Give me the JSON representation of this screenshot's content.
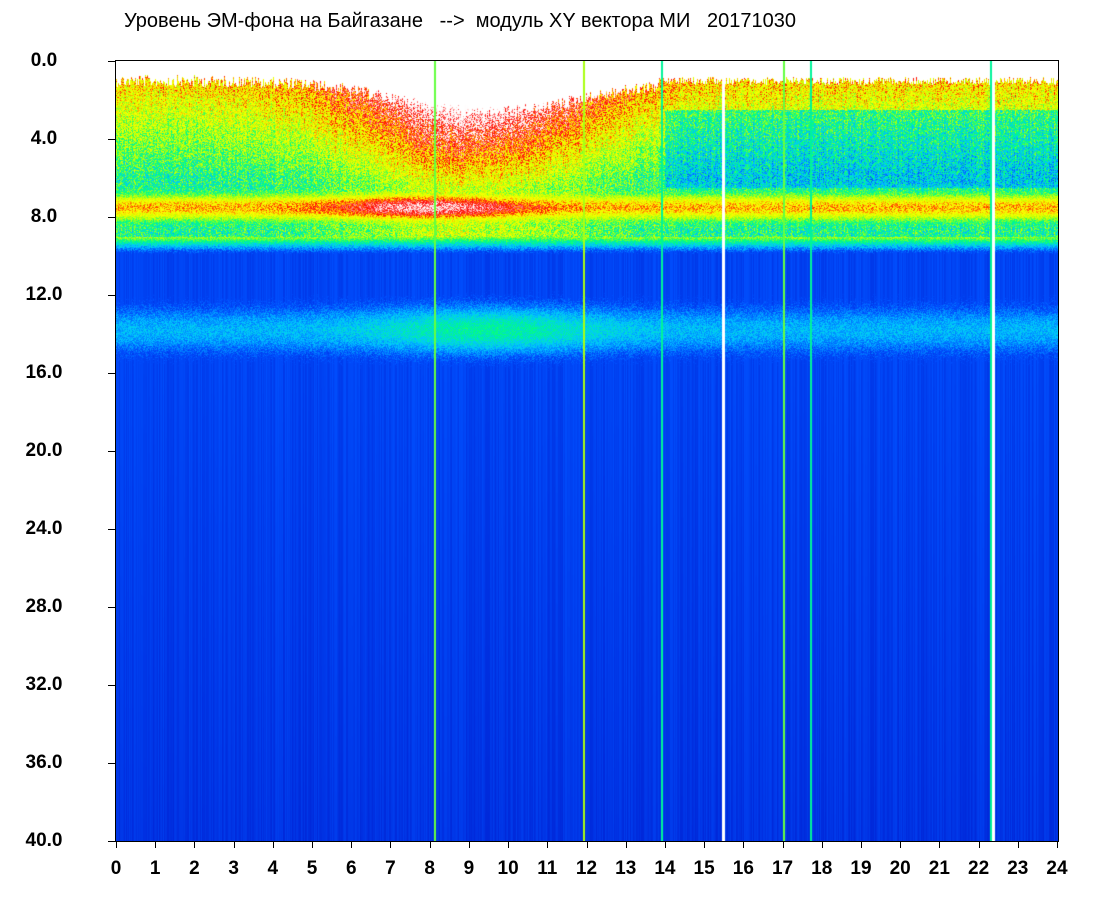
{
  "chart_data": {
    "type": "heatmap",
    "title": "Уровень ЭМ-фона на Байгазане   -->  модуль XY вектора МИ   20171030",
    "xlabel": "",
    "ylabel": "",
    "x_ticks": [
      "0",
      "1",
      "2",
      "3",
      "4",
      "5",
      "6",
      "7",
      "8",
      "9",
      "10",
      "11",
      "12",
      "13",
      "14",
      "15",
      "16",
      "17",
      "18",
      "19",
      "20",
      "21",
      "22",
      "23",
      "24"
    ],
    "y_ticks": [
      "0.0",
      "4.0",
      "8.0",
      "12.0",
      "16.0",
      "20.0",
      "24.0",
      "28.0",
      "32.0",
      "36.0",
      "40.0"
    ],
    "xlim": [
      0,
      24
    ],
    "ylim": [
      0,
      40
    ],
    "y_inverted": true,
    "colormap": [
      "#0000b4",
      "#0050ff",
      "#00c8ff",
      "#00ff80",
      "#c8ff00",
      "#ffff00",
      "#ff0000",
      "#ffffff"
    ],
    "background_level": 0.12,
    "features": [
      {
        "name": "upper-band-top",
        "y_from": 1.0,
        "y_to": 9.0,
        "level_from": 0.95,
        "level_to": 0.55
      },
      {
        "name": "band-peak",
        "y_center": 7.5,
        "half_width": 1.0,
        "level": 0.88
      },
      {
        "name": "secondary-band",
        "y_center": 13.8,
        "half_width": 1.5,
        "level": 0.33
      }
    ],
    "vertical_lines": [
      {
        "x": 8.1,
        "level": 0.5
      },
      {
        "x": 11.9,
        "level": 0.55
      },
      {
        "x": 13.9,
        "level": 0.4
      },
      {
        "x": 17.0,
        "level": 0.5
      },
      {
        "x": 17.7,
        "level": 0.4
      },
      {
        "x": 22.3,
        "level": 0.4
      }
    ],
    "gaps": [
      15.45,
      22.35
    ]
  }
}
